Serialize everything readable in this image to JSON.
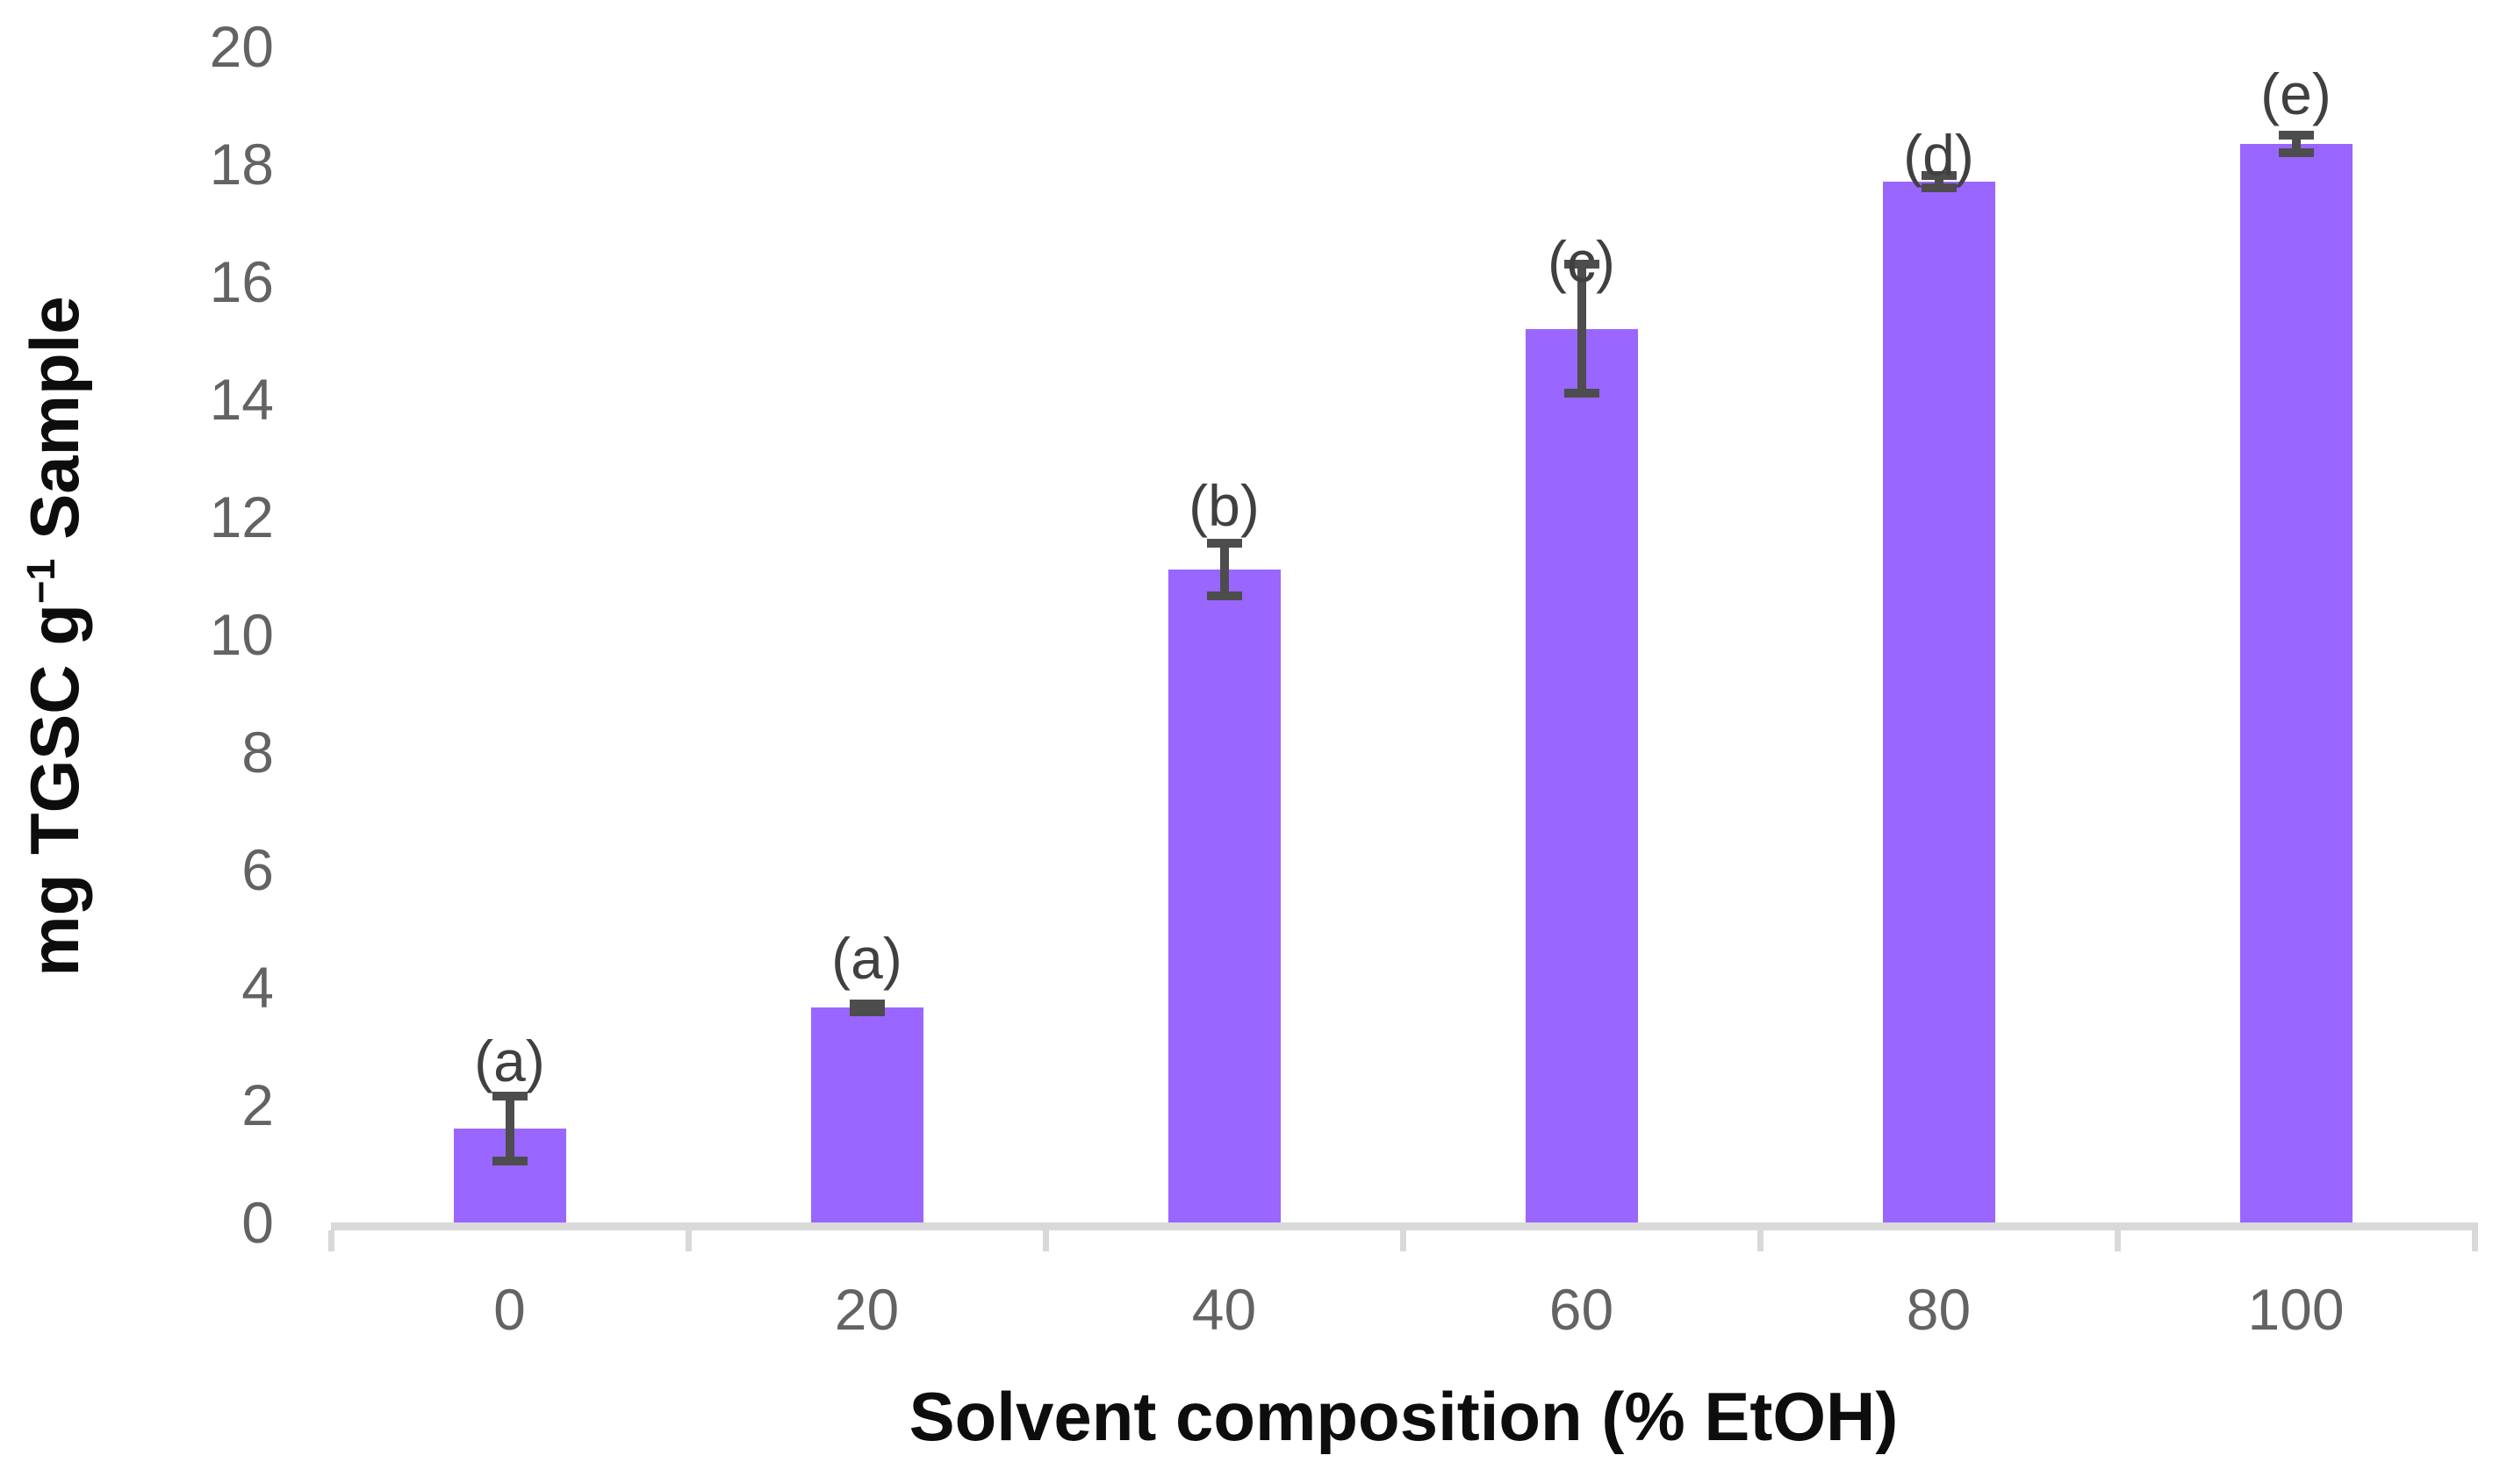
{
  "chart_data": {
    "type": "bar",
    "title": "",
    "categories": [
      "0",
      "20",
      "40",
      "60",
      "80",
      "100"
    ],
    "values": [
      1.6,
      3.65,
      11.1,
      15.2,
      17.7,
      18.35
    ],
    "errors": [
      0.55,
      0.07,
      0.45,
      1.1,
      0.1,
      0.15
    ],
    "annotations": [
      "(a)",
      "(a)",
      "(b)",
      "(c)",
      "(d)",
      "(e)"
    ],
    "annotation_y": [
      2.75,
      4.5,
      12.2,
      16.35,
      18.15,
      19.2
    ],
    "xlabel": "Solvent composition (% EtOH)",
    "ylabel": "mg TGSC g⁻¹ Sample",
    "ylabel_parts": {
      "pre": "mg TGSC g",
      "sup": "−1",
      "post": " Sample"
    },
    "ylim": [
      0,
      20
    ],
    "ytick_step": 2,
    "ytick_labels": [
      "0",
      "2",
      "4",
      "6",
      "8",
      "10",
      "12",
      "14",
      "16",
      "18",
      "20"
    ],
    "grid": false,
    "legend_position": "none",
    "colors": {
      "bar": "#9966FF",
      "error": "#4D4D4D",
      "axis": "#D9D9D9",
      "tick_label": "#636363",
      "annotation": "#404040",
      "axis_title": "#0D0D0D"
    }
  }
}
